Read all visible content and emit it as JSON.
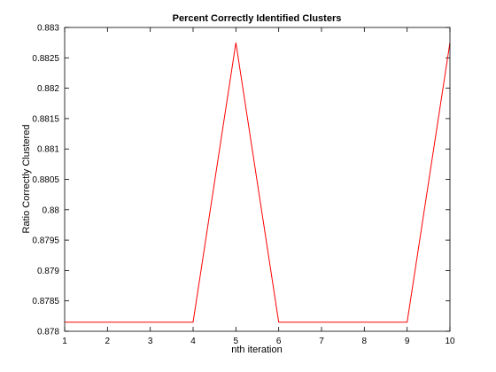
{
  "chart_data": {
    "type": "line",
    "title": "Percent Correctly Identified Clusters",
    "xlabel": "nth iteration",
    "ylabel": "Ratio Correctly Clustered",
    "xlim": [
      1,
      10
    ],
    "ylim": [
      0.878,
      0.883
    ],
    "xticks": [
      1,
      2,
      3,
      4,
      5,
      6,
      7,
      8,
      9,
      10
    ],
    "xtick_labels": [
      "1",
      "2",
      "3",
      "4",
      "5",
      "6",
      "7",
      "8",
      "9",
      "10"
    ],
    "yticks": [
      0.878,
      0.8785,
      0.879,
      0.8795,
      0.88,
      0.8805,
      0.881,
      0.8815,
      0.882,
      0.8825,
      0.883
    ],
    "ytick_labels": [
      "0.878",
      "0.8785",
      "0.879",
      "0.8795",
      "0.88",
      "0.8805",
      "0.881",
      "0.8815",
      "0.882",
      "0.8825",
      "0.883"
    ],
    "grid": false,
    "series": [
      {
        "color": "#ff0000",
        "x": [
          1,
          2,
          3,
          4,
          5,
          6,
          7,
          8,
          9,
          10
        ],
        "y": [
          0.87815,
          0.87815,
          0.87815,
          0.87815,
          0.88275,
          0.87815,
          0.87815,
          0.87815,
          0.87815,
          0.88275
        ]
      }
    ]
  }
}
